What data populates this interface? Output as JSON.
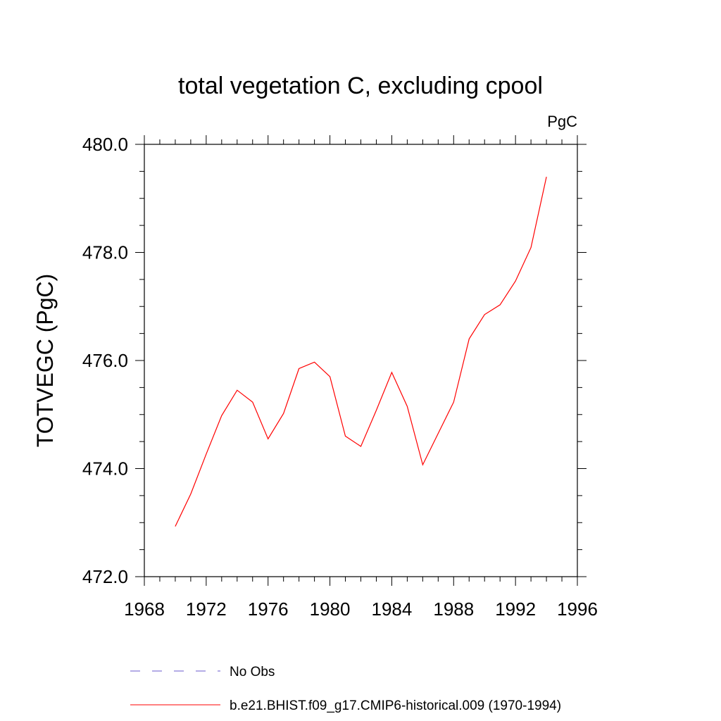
{
  "chart_data": {
    "type": "line",
    "title": "total vegetation C, excluding cpool",
    "units_label": "PgC",
    "xlabel": "",
    "ylabel": "TOTVEGC  (PgC)",
    "xlim": [
      1968,
      1996
    ],
    "ylim": [
      472.0,
      480.0
    ],
    "x_ticks": [
      1968,
      1972,
      1976,
      1980,
      1984,
      1988,
      1992,
      1996
    ],
    "x_tick_labels": [
      "1968",
      "1972",
      "1976",
      "1980",
      "1984",
      "1988",
      "1992",
      "1996"
    ],
    "y_ticks": [
      472.0,
      474.0,
      476.0,
      478.0,
      480.0
    ],
    "y_tick_labels": [
      "472.0",
      "474.0",
      "476.0",
      "478.0",
      "480.0"
    ],
    "grid": false,
    "legend_position": "bottom",
    "series": [
      {
        "name": "b.e21.BHIST.f09_g17.CMIP6-historical.009 (1970-1994)",
        "color": "#ff0000",
        "style": "solid",
        "x": [
          1970,
          1971,
          1972,
          1973,
          1974,
          1975,
          1976,
          1977,
          1978,
          1979,
          1980,
          1981,
          1982,
          1983,
          1984,
          1985,
          1986,
          1987,
          1988,
          1989,
          1990,
          1991,
          1992,
          1993,
          1994
        ],
        "y": [
          472.93,
          473.53,
          474.27,
          474.98,
          475.45,
          475.23,
          474.55,
          475.02,
          475.85,
          475.97,
          475.7,
          474.6,
          474.41,
          475.08,
          475.78,
          475.15,
          474.07,
          474.65,
          475.23,
          476.4,
          476.85,
          477.03,
          477.47,
          478.09,
          479.4
        ]
      }
    ],
    "legend": [
      {
        "label": "No Obs",
        "color": "#6a5acd",
        "style": "dashed"
      },
      {
        "label": "b.e21.BHIST.f09_g17.CMIP6-historical.009 (1970-1994)",
        "color": "#ff0000",
        "style": "solid"
      }
    ]
  }
}
